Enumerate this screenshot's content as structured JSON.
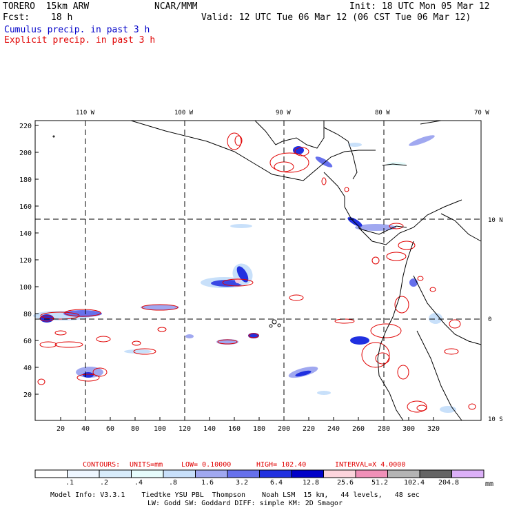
{
  "header": {
    "model": "TORERO  15km ARW",
    "org": "NCAR/MMM",
    "init": "Init: 18 UTC Mon 05 Mar 12",
    "fcst_label": "Fcst:",
    "fcst_value": "18 h",
    "valid": "Valid: 12 UTC Tue 06 Mar 12 (06 CST Tue 06 Mar 12)"
  },
  "legend_text": {
    "cumulus": "Cumulus precip. in past 3 h",
    "explicit": "Explicit precip. in past 3 h"
  },
  "colors": {
    "cumulus": "#0000c8",
    "explicit": "#e00000"
  },
  "map": {
    "longitude_labels": [
      "110 W",
      "100 W",
      "90 W",
      "80 W",
      "70 W"
    ],
    "latitude_labels": [
      "10 N",
      "0",
      "10 S"
    ],
    "y_ticks": [
      "220",
      "200",
      "180",
      "160",
      "140",
      "120",
      "100",
      "80",
      "60",
      "40",
      "20"
    ],
    "x_ticks": [
      "20",
      "40",
      "60",
      "80",
      "100",
      "120",
      "140",
      "160",
      "180",
      "200",
      "220",
      "240",
      "260",
      "280",
      "300",
      "320"
    ]
  },
  "contours_info": {
    "label": "CONTOURS:",
    "units": "UNITS=mm",
    "low": "LOW= 0.10000",
    "high": "HIGH=  102.40",
    "interval": "INTERVAL=X  4.0000"
  },
  "colorbar": {
    "labels": [
      ".1",
      ".2",
      ".4",
      ".8",
      "1.6",
      "3.2",
      "6.4",
      "12.8",
      "25.6",
      "51.2",
      "102.4",
      "204.8"
    ],
    "unit": "mm",
    "colors": [
      "#ffffff",
      "#eef6ff",
      "#d8ecfb",
      "#e6fcfc",
      "#c8e0fa",
      "#a0a8f0",
      "#6670ec",
      "#2030e0",
      "#0000c8",
      "#fcd4dc",
      "#f090b8",
      "#b4b4b4",
      "#646464",
      "#dcb0f8"
    ]
  },
  "footer": {
    "line1": "Model Info: V3.3.1    Tiedtke YSU PBL  Thompson    Noah LSM  15 km,   44 levels,   48 sec",
    "line2": "LW: Godd SW: Goddard DIFF: simple KM: 2D Smagor"
  }
}
